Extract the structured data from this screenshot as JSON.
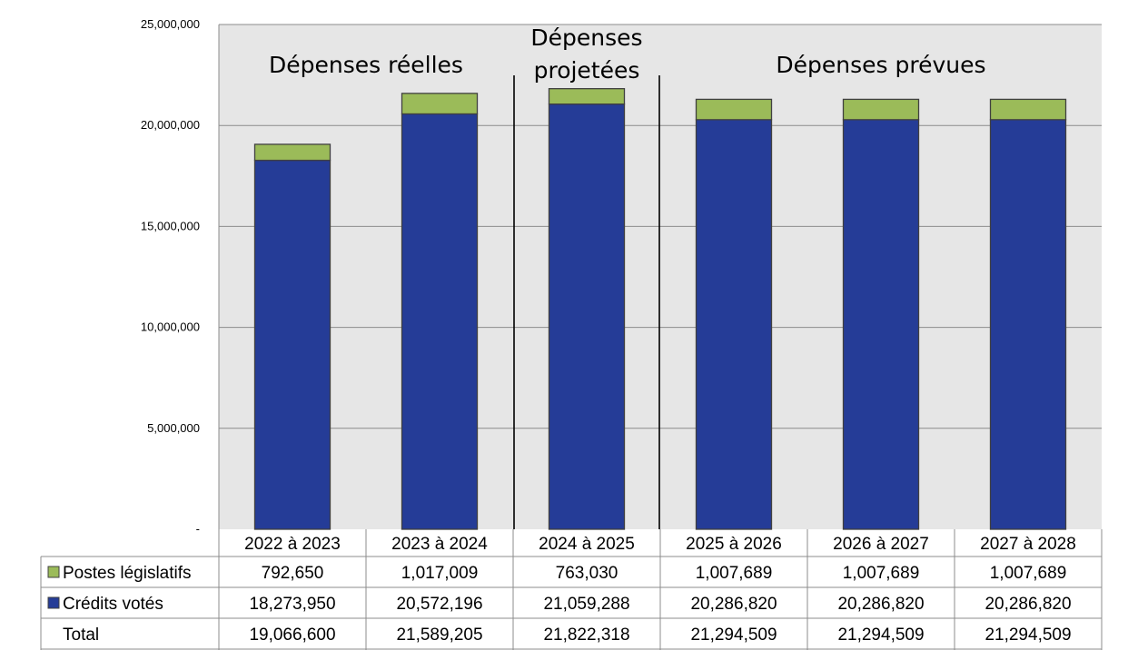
{
  "chart_data": {
    "type": "bar",
    "stacked": true,
    "categories": [
      "2022 à 2023",
      "2023 à 2024",
      "2024 à 2025",
      "2025 à 2026",
      "2026 à 2027",
      "2027 à 2028"
    ],
    "series": [
      {
        "name": "Crédits votés",
        "color": "#253C97",
        "values": [
          18273950,
          20572196,
          21059288,
          20286820,
          20286820,
          20286820
        ],
        "labels": [
          "18,273,950",
          "20,572,196",
          "21,059,288",
          "20,286,820",
          "20,286,820",
          "20,286,820"
        ]
      },
      {
        "name": "Postes législatifs",
        "color": "#9BBB59",
        "values": [
          792650,
          1017009,
          763030,
          1007689,
          1007689,
          1007689
        ],
        "labels": [
          "792,650",
          "1,017,009",
          "763,030",
          "1,007,689",
          "1,007,689",
          "1,007,689"
        ]
      }
    ],
    "total": {
      "name": "Total",
      "values": [
        19066600,
        21589205,
        21822318,
        21294509,
        21294509,
        21294509
      ],
      "labels": [
        "19,066,600",
        "21,589,205",
        "21,822,318",
        "21,294,509",
        "21,294,509",
        "21,294,509"
      ]
    },
    "ylim": [
      0,
      25000000
    ],
    "yticks": [
      0,
      5000000,
      10000000,
      15000000,
      20000000,
      25000000
    ],
    "ytick_labels": [
      "-",
      "5,000,000",
      "10,000,000",
      "15,000,000",
      "20,000,000",
      "25,000,000"
    ],
    "grid": true,
    "plot_background": "#E6E6E6",
    "period_annotations": [
      {
        "lines": [
          "Dépenses réelles"
        ],
        "from": 0,
        "to": 1
      },
      {
        "lines": [
          "Dépenses",
          "projetées"
        ],
        "from": 2,
        "to": 2
      },
      {
        "lines": [
          "Dépenses prévues"
        ],
        "from": 3,
        "to": 5
      }
    ],
    "legend": "data-table"
  }
}
